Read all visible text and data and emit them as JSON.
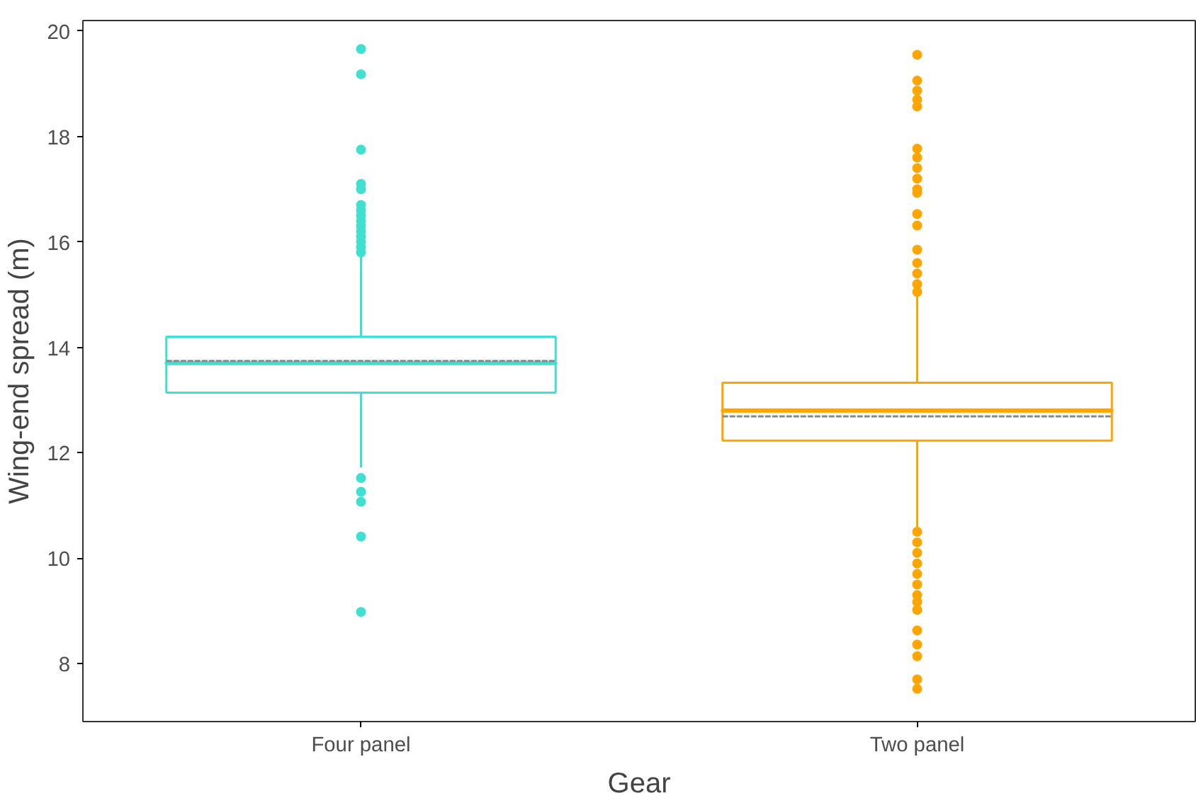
{
  "chart_data": {
    "type": "box",
    "xlabel": "Gear",
    "ylabel": "Wing-end spread (m)",
    "categories": [
      "Four panel",
      "Two panel"
    ],
    "colors": [
      "#40e0d0",
      "#ffa500"
    ],
    "boxes": [
      {
        "low": 11.72,
        "q1": 13.14,
        "median": 13.7,
        "q3": 14.2,
        "high": 15.75,
        "mean": 13.74,
        "outliers": [
          19.66,
          19.18,
          17.75,
          17.1,
          17.0,
          16.7,
          16.6,
          16.5,
          16.4,
          16.3,
          16.2,
          16.1,
          16.0,
          15.9,
          15.8,
          11.52,
          11.26,
          11.07,
          10.41,
          8.98
        ]
      },
      {
        "low": 10.57,
        "q1": 12.23,
        "median": 12.8,
        "q3": 13.33,
        "high": 15.0,
        "mean": 12.69,
        "outliers": [
          19.55,
          19.06,
          18.87,
          18.7,
          18.57,
          17.77,
          17.6,
          17.4,
          17.2,
          17.0,
          16.93,
          16.53,
          16.31,
          15.85,
          15.6,
          15.4,
          15.2,
          15.05,
          10.5,
          10.3,
          10.1,
          9.9,
          9.7,
          9.5,
          9.3,
          9.17,
          9.02,
          8.63,
          8.36,
          8.14,
          7.7,
          7.52
        ]
      }
    ],
    "ylim": [
      6.9,
      20.2
    ],
    "yticks": [
      8,
      10,
      12,
      14,
      16,
      18,
      20
    ],
    "grid": false
  }
}
